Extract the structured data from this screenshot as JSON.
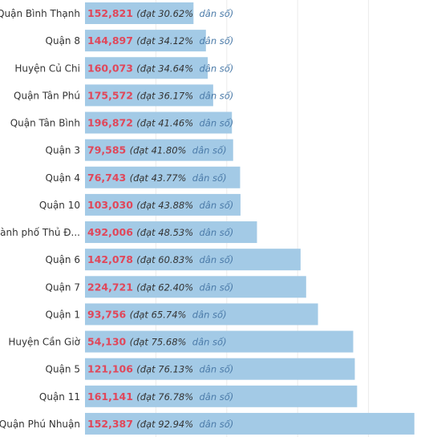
{
  "chart_data": {
    "type": "bar",
    "orientation": "horizontal",
    "categories": [
      "Quận Bình Thạnh",
      "Quận 8",
      "Huyện Củ Chi",
      "Quận Tân Phú",
      "Quận Tân Bình",
      "Quận 3",
      "Quận 4",
      "Quận 10",
      "Thành phố Thủ Đ...",
      "Quận 6",
      "Quận 7",
      "Quận 1",
      "Huyện Cần Giờ",
      "Quận 5",
      "Quận 11",
      "Quận Phú Nhuận"
    ],
    "values": [
      30.62,
      34.12,
      34.64,
      36.17,
      41.46,
      41.8,
      43.77,
      43.88,
      48.53,
      60.83,
      62.4,
      65.74,
      75.68,
      76.13,
      76.78,
      92.94
    ],
    "counts": [
      "152,821",
      "144,897",
      "160,073",
      "175,572",
      "196,872",
      "79,585",
      "76,743",
      "103,030",
      "492,006",
      "142,078",
      "224,721",
      "93,756",
      "54,130",
      "121,106",
      "161,141",
      "152,387"
    ],
    "percent_labels": [
      "(đạt 30.62%",
      "(đạt 34.12%",
      "(đạt 34.64%",
      "(đạt 36.17%",
      "(đạt 41.46%",
      "(đạt 41.80%",
      "(đạt 43.77%",
      "(đạt 43.88%",
      "(đạt 48.53%",
      "(đạt 60.83%",
      "(đạt 62.40%",
      "(đạt 65.74%",
      "(đạt 75.68%",
      "(đạt 76.13%",
      "(đạt 76.78%",
      "(đạt 92.94%"
    ],
    "label_suffix": "dân số)",
    "xlim": [
      0,
      100
    ],
    "grid": true,
    "colors": {
      "bar": "#a3cae6",
      "count": "#e0475a",
      "suffix": "#4a7aa8",
      "grid": "#ebebeb"
    }
  }
}
